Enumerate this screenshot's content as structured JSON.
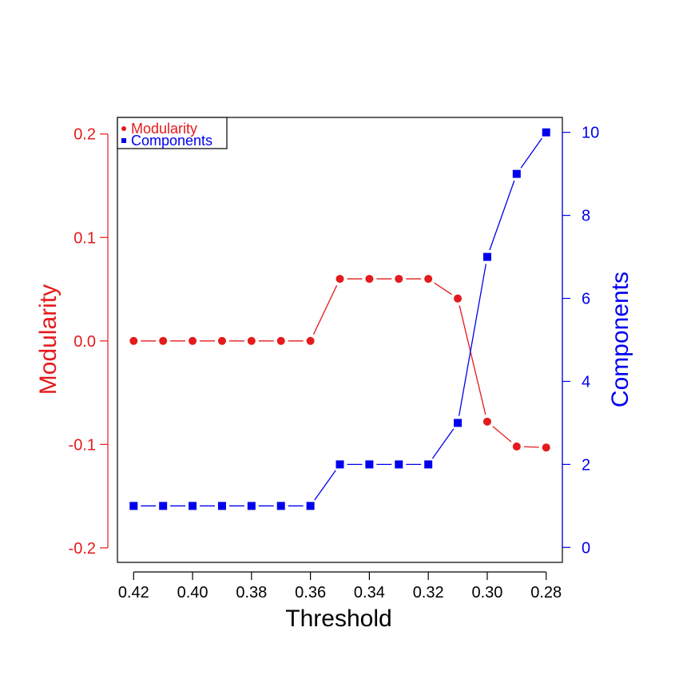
{
  "colors": {
    "modularity": "#e41a1c",
    "components": "#0000ee",
    "axis": "#000000"
  },
  "chart_data": {
    "type": "line",
    "x": [
      0.42,
      0.41,
      0.4,
      0.39,
      0.38,
      0.37,
      0.36,
      0.35,
      0.34,
      0.33,
      0.32,
      0.31,
      0.3,
      0.29,
      0.28
    ],
    "xlim": [
      0.4255,
      0.2745
    ],
    "xticks": [
      0.42,
      0.4,
      0.38,
      0.36,
      0.34,
      0.32,
      0.3,
      0.28
    ],
    "xtick_labels": [
      "0.42",
      "0.40",
      "0.38",
      "0.36",
      "0.34",
      "0.32",
      "0.30",
      "0.28"
    ],
    "xlabel": "Threshold",
    "series": [
      {
        "name": "Modularity",
        "axis": "left",
        "marker": "circle",
        "values": [
          0.0,
          0.0,
          0.0,
          0.0,
          0.0,
          0.0,
          0.0,
          0.06,
          0.06,
          0.06,
          0.06,
          0.041,
          -0.078,
          -0.102,
          -0.103
        ]
      },
      {
        "name": "Components",
        "axis": "right",
        "marker": "square",
        "values": [
          1,
          1,
          1,
          1,
          1,
          1,
          1,
          2,
          2,
          2,
          2,
          3,
          7,
          9,
          10
        ]
      }
    ],
    "y_left": {
      "label": "Modularity",
      "ylim": [
        -0.214,
        0.216
      ],
      "ticks": [
        -0.2,
        -0.1,
        0.0,
        0.1,
        0.2
      ],
      "tick_labels": [
        "-0.2",
        "-0.1",
        "0.0",
        "0.1",
        "0.2"
      ]
    },
    "y_right": {
      "label": "Components",
      "ylim": [
        -0.36,
        10.36
      ],
      "ticks": [
        0,
        2,
        4,
        6,
        8,
        10
      ],
      "tick_labels": [
        "0",
        "2",
        "4",
        "6",
        "8",
        "10"
      ]
    },
    "legend": {
      "position": "top-left",
      "entries": [
        "Modularity",
        "Components"
      ]
    },
    "grid": false
  }
}
